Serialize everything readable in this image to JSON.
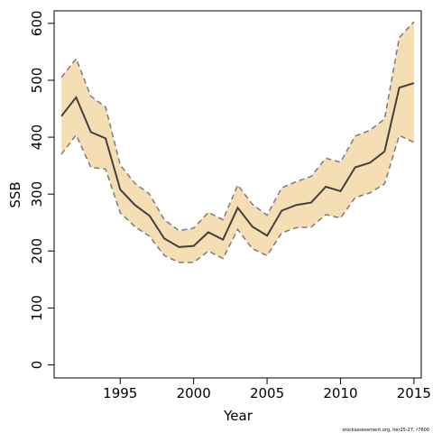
{
  "chart_data": {
    "type": "line",
    "xlabel": "Year",
    "ylabel": "SSB",
    "xlim": [
      1990.5,
      2015.5
    ],
    "ylim": [
      -23,
      622
    ],
    "xticks": [
      1995,
      2000,
      2005,
      2010,
      2015
    ],
    "yticks": [
      0,
      100,
      200,
      300,
      400,
      500,
      600
    ],
    "x": [
      1991,
      1992,
      1993,
      1994,
      1995,
      1996,
      1997,
      1998,
      1999,
      2000,
      2001,
      2002,
      2003,
      2004,
      2005,
      2006,
      2007,
      2008,
      2009,
      2010,
      2011,
      2012,
      2013,
      2014,
      2015
    ],
    "series": [
      {
        "values": [
          437,
          470,
          409,
          398,
          308,
          281,
          262,
          222,
          207,
          209,
          233,
          220,
          276,
          243,
          227,
          271,
          281,
          285,
          313,
          305,
          347,
          355,
          375,
          487,
          495
        ]
      }
    ],
    "upper": [
      505,
      538,
      472,
      453,
      351,
      319,
      300,
      255,
      236,
      240,
      268,
      255,
      316,
      282,
      263,
      311,
      322,
      331,
      363,
      356,
      402,
      412,
      432,
      575,
      603
    ],
    "lower": [
      370,
      404,
      347,
      344,
      267,
      243,
      226,
      192,
      180,
      180,
      200,
      187,
      238,
      204,
      192,
      232,
      241,
      242,
      264,
      258,
      294,
      302,
      318,
      403,
      391
    ],
    "colors": {
      "band": "#f5deb3",
      "line": "#404040",
      "bound": "#7a7a7a",
      "frame": "#000000"
    },
    "grid": false,
    "legend": "none",
    "footnote": "stockassessment.org, her25-27, r7600"
  }
}
